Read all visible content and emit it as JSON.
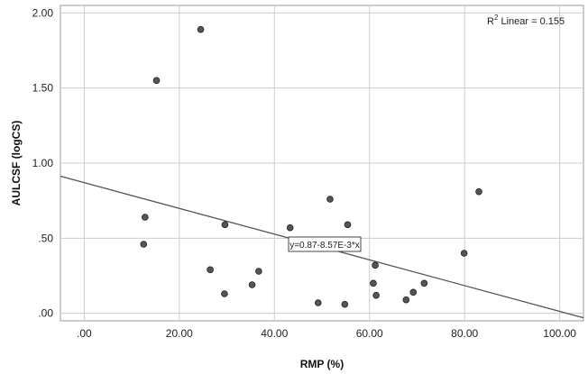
{
  "chart_data": {
    "type": "scatter",
    "xlabel": "RMP (%)",
    "ylabel": "AULCSF (logCS)",
    "xlim": [
      -5,
      105
    ],
    "ylim": [
      -0.05,
      2.05
    ],
    "x_ticks": [
      0,
      20,
      40,
      60,
      80,
      100
    ],
    "x_tick_labels": [
      ".00",
      "20.00",
      "40.00",
      "60.00",
      "80.00",
      "100.00"
    ],
    "y_ticks": [
      0,
      0.5,
      1.0,
      1.5,
      2.0
    ],
    "y_tick_labels": [
      ".00",
      ".50",
      "1.00",
      "1.50",
      "2.00"
    ],
    "grid": true,
    "points": [
      {
        "x": 12.5,
        "y": 0.46
      },
      {
        "x": 12.8,
        "y": 0.64
      },
      {
        "x": 15.2,
        "y": 1.55
      },
      {
        "x": 24.5,
        "y": 1.89
      },
      {
        "x": 26.5,
        "y": 0.29
      },
      {
        "x": 29.5,
        "y": 0.13
      },
      {
        "x": 29.6,
        "y": 0.59
      },
      {
        "x": 35.3,
        "y": 0.19
      },
      {
        "x": 36.7,
        "y": 0.28
      },
      {
        "x": 43.3,
        "y": 0.57
      },
      {
        "x": 49.2,
        "y": 0.07
      },
      {
        "x": 51.7,
        "y": 0.76
      },
      {
        "x": 54.8,
        "y": 0.06
      },
      {
        "x": 55.4,
        "y": 0.59
      },
      {
        "x": 60.8,
        "y": 0.2
      },
      {
        "x": 61.2,
        "y": 0.32
      },
      {
        "x": 61.4,
        "y": 0.12
      },
      {
        "x": 67.7,
        "y": 0.09
      },
      {
        "x": 69.2,
        "y": 0.14
      },
      {
        "x": 71.5,
        "y": 0.2
      },
      {
        "x": 79.9,
        "y": 0.4
      },
      {
        "x": 83.0,
        "y": 0.81
      }
    ],
    "fit_line": {
      "intercept": 0.87,
      "slope": -0.00857
    },
    "equation_label": "y=0.87-8.57E-3*x",
    "r2_label_prefix": "R",
    "r2_label_sup": "2",
    "r2_label_rest": " Linear = 0.155",
    "colors": {
      "point_fill": "#555555",
      "point_stroke": "#222222",
      "line": "#555555",
      "grid": "#cccccc"
    }
  }
}
